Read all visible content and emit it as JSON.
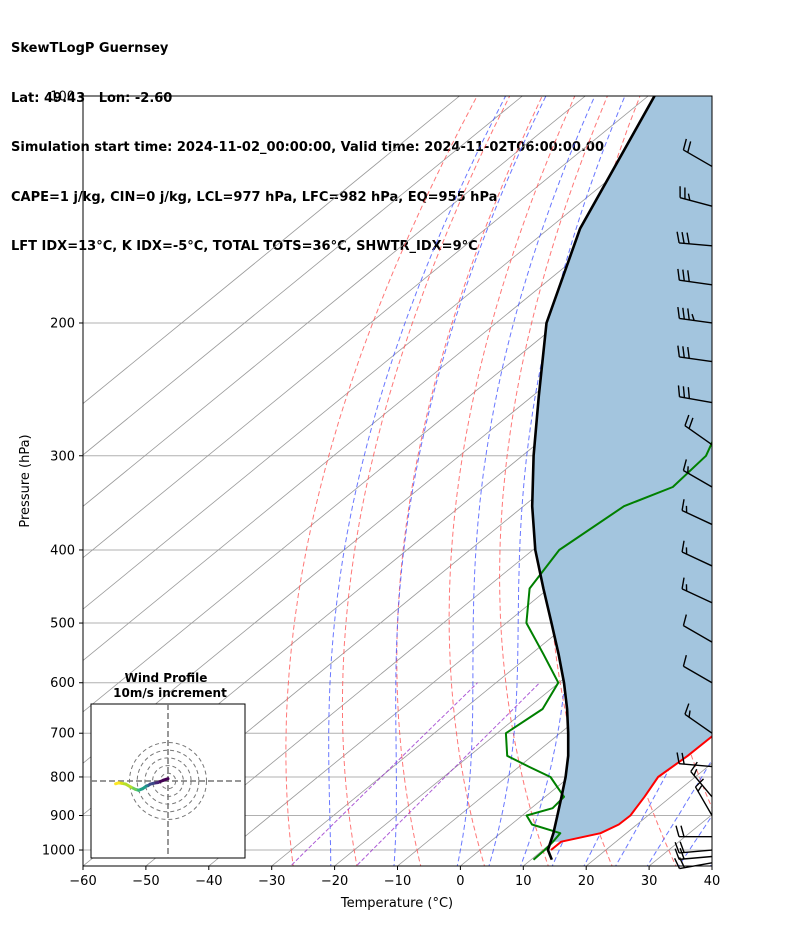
{
  "header": {
    "line1": "SkewTLogP Guernsey",
    "line2": "Lat: 49.43   Lon: -2.60",
    "line3": "Simulation start time: 2024-11-02_00:00:00, Valid time: 2024-11-02T06:00:00.00",
    "line4": "CAPE=1 j/kg, CIN=0 j/kg, LCL=977 hPa, LFC=982 hPa, EQ=955 hPa",
    "line5": "LFT IDX=13°C, K IDX=-5°C, TOTAL TOTS=36°C, SHWTR_IDX=9°C"
  },
  "chart_data": {
    "type": "line",
    "skew": "skew-T log-p",
    "xlabel": "Temperature (°C)",
    "ylabel": "Pressure (hPa)",
    "xlim": [
      -60,
      40
    ],
    "ylim": [
      1050,
      100
    ],
    "yscale": "log",
    "grid": true,
    "x_ticks": [
      -60,
      -50,
      -40,
      -30,
      -20,
      -10,
      0,
      10,
      20,
      30,
      40
    ],
    "y_ticks": [
      100,
      200,
      300,
      400,
      500,
      600,
      700,
      800,
      900,
      1000
    ],
    "x_tick_labels": [
      "−60",
      "−50",
      "−40",
      "−30",
      "−20",
      "−10",
      "0",
      "10",
      "20",
      "30",
      "40"
    ],
    "y_tick_labels": [
      "100",
      "200",
      "300",
      "400",
      "500",
      "600",
      "700",
      "800",
      "900",
      "1000"
    ],
    "colors": {
      "temperature": "#ff0000",
      "dewpoint": "#008000",
      "parcel": "#000000",
      "cape_fill": "#a3c5de",
      "dry_adiabats": "#ff5555",
      "moist_adiabats": "#4455ff",
      "mixing_ratio": "#9933cc",
      "isotherms": "#999999"
    },
    "series": [
      {
        "key": "temperature",
        "points": [
          [
            1000,
            11.3
          ],
          [
            975,
            11.3
          ],
          [
            950,
            15.9
          ],
          [
            925,
            17.1
          ],
          [
            900,
            17.2
          ],
          [
            850,
            15.8
          ],
          [
            800,
            14.1
          ],
          [
            750,
            14.7
          ],
          [
            700,
            14.8
          ],
          [
            650,
            13.1
          ],
          [
            600,
            10.5
          ],
          [
            550,
            7.7
          ],
          [
            500,
            3.7
          ],
          [
            450,
            -0.9
          ],
          [
            400,
            -6.3
          ],
          [
            350,
            -12.5
          ],
          [
            300,
            -20.0
          ],
          [
            270,
            -25.0
          ],
          [
            250,
            -29.3
          ],
          [
            220,
            -37.0
          ],
          [
            200,
            -43.5
          ],
          [
            180,
            -48.0
          ],
          [
            150,
            -53.0
          ],
          [
            120,
            -57.5
          ],
          [
            100,
            -61.5
          ]
        ]
      },
      {
        "key": "dewpoint",
        "points": [
          [
            1030,
            10.4
          ],
          [
            1000,
            10.3
          ],
          [
            975,
            10.0
          ],
          [
            950,
            9.5
          ],
          [
            925,
            3.3
          ],
          [
            900,
            0.7
          ],
          [
            880,
            3.4
          ],
          [
            850,
            3.0
          ],
          [
            800,
            -3.0
          ],
          [
            775,
            -8.5
          ],
          [
            750,
            -14.0
          ],
          [
            700,
            -18.6
          ],
          [
            650,
            -17.5
          ],
          [
            600,
            -20.1
          ],
          [
            550,
            -28.0
          ],
          [
            500,
            -36.8
          ],
          [
            450,
            -43.0
          ],
          [
            400,
            -45.8
          ],
          [
            350,
            -44.0
          ],
          [
            330,
            -40.0
          ],
          [
            300,
            -40.8
          ],
          [
            270,
            -45.0
          ],
          [
            240,
            -50.5
          ],
          [
            200,
            -57.0
          ],
          [
            170,
            -64.0
          ],
          [
            150,
            -70.0
          ],
          [
            130,
            -72.0
          ],
          [
            100,
            -70.5
          ]
        ]
      },
      {
        "key": "parcel",
        "points": [
          [
            1030,
            13.3
          ],
          [
            1000,
            10.8
          ],
          [
            950,
            8.4
          ],
          [
            900,
            5.6
          ],
          [
            850,
            2.6
          ],
          [
            800,
            -0.6
          ],
          [
            750,
            -4.3
          ],
          [
            700,
            -8.7
          ],
          [
            650,
            -13.6
          ],
          [
            600,
            -19.2
          ],
          [
            550,
            -25.6
          ],
          [
            500,
            -32.8
          ],
          [
            450,
            -40.8
          ],
          [
            400,
            -49.6
          ],
          [
            350,
            -58.6
          ],
          [
            300,
            -68.2
          ],
          [
            250,
            -79.0
          ],
          [
            200,
            -92.0
          ],
          [
            150,
            -105.0
          ],
          [
            100,
            -119.0
          ]
        ]
      }
    ],
    "wind_barbs": [
      {
        "p": 1040,
        "speed_kt": 20,
        "dir": 260
      },
      {
        "p": 1020,
        "speed_kt": 20,
        "dir": 265
      },
      {
        "p": 1000,
        "speed_kt": 20,
        "dir": 265
      },
      {
        "p": 960,
        "speed_kt": 20,
        "dir": 270
      },
      {
        "p": 900,
        "speed_kt": 15,
        "dir": 330
      },
      {
        "p": 850,
        "speed_kt": 15,
        "dir": 320
      },
      {
        "p": 775,
        "speed_kt": 20,
        "dir": 275
      },
      {
        "p": 700,
        "speed_kt": 15,
        "dir": 305
      },
      {
        "p": 600,
        "speed_kt": 10,
        "dir": 300
      },
      {
        "p": 530,
        "speed_kt": 10,
        "dir": 300
      },
      {
        "p": 470,
        "speed_kt": 15,
        "dir": 295
      },
      {
        "p": 420,
        "speed_kt": 15,
        "dir": 295
      },
      {
        "p": 370,
        "speed_kt": 15,
        "dir": 295
      },
      {
        "p": 330,
        "speed_kt": 15,
        "dir": 300
      },
      {
        "p": 290,
        "speed_kt": 20,
        "dir": 305
      },
      {
        "p": 255,
        "speed_kt": 30,
        "dir": 280
      },
      {
        "p": 225,
        "speed_kt": 30,
        "dir": 278
      },
      {
        "p": 200,
        "speed_kt": 35,
        "dir": 278
      },
      {
        "p": 178,
        "speed_kt": 30,
        "dir": 278
      },
      {
        "p": 158,
        "speed_kt": 30,
        "dir": 275
      },
      {
        "p": 140,
        "speed_kt": 25,
        "dir": 285
      },
      {
        "p": 124,
        "speed_kt": 20,
        "dir": 300
      }
    ],
    "hodograph": {
      "title": "Wind Profile",
      "subtitle": "10m/s increment",
      "ring_step_ms": 10,
      "points": [
        [
          0,
          -1.5
        ],
        [
          -3,
          -0.5
        ],
        [
          -6.5,
          1
        ],
        [
          -9.5,
          1.5
        ],
        [
          -11.5,
          2
        ],
        [
          -13,
          3
        ],
        [
          -14,
          3.2
        ],
        [
          -15,
          4
        ],
        [
          -16.5,
          5
        ],
        [
          -19,
          6
        ],
        [
          -21,
          5.5
        ],
        [
          -24,
          4
        ],
        [
          -27.5,
          2
        ],
        [
          -30,
          1.5
        ],
        [
          -32,
          1.2
        ],
        [
          -34,
          1.8
        ]
      ]
    }
  }
}
